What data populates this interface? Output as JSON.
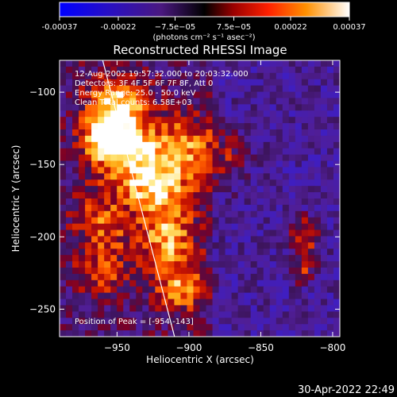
{
  "chart_data": {
    "type": "heatmap",
    "title": "Reconstructed RHESSI Image",
    "xlabel": "Heliocentric X (arcsec)",
    "ylabel": "Heliocentric Y (arcsec)",
    "xlim": [
      -990,
      -795
    ],
    "ylim": [
      -269,
      -78
    ],
    "x_ticks": [
      -950,
      -900,
      -850,
      -800
    ],
    "y_ticks": [
      -100,
      -150,
      -200,
      -250
    ],
    "x_tick_labels": [
      "−950",
      "−900",
      "−850",
      "−800"
    ],
    "y_tick_labels": [
      "−100",
      "−150",
      "−200",
      "−250"
    ],
    "colorbar": {
      "min": -0.00037,
      "max": 0.00037,
      "ticks": [
        -0.00037,
        -0.00022,
        -7.5e-05,
        7.5e-05,
        0.00022,
        0.00037
      ],
      "tick_labels": [
        "-0.00037",
        "-0.00022",
        "−7.5e−05",
        "7.5e−05",
        "0.00022",
        "0.00037"
      ],
      "unit_label": "(photons cm⁻² s⁻¹ asec⁻²)"
    },
    "annotations": [
      "12-Aug-2002 19:57:32.000 to 20:03:32.000",
      "Detectors: 3F 4F 5F 6F 7F 8F, Att 0",
      "Energy Range: 25.0 - 50.0 keV",
      "Clean   Total counts: 6.58E+03"
    ],
    "peak_label": "Position of Peak = [-954,-143]",
    "peak": [
      -954,
      -143
    ],
    "limb_line": [
      [
        -960,
        -78
      ],
      [
        -910,
        -269
      ]
    ],
    "sources": [
      {
        "x": -950,
        "y": -110,
        "sx": 14,
        "sy": 14,
        "amp": 1.0
      },
      {
        "x": -943,
        "y": -140,
        "sx": 16,
        "sy": 14,
        "amp": 1.05
      },
      {
        "x": -960,
        "y": -130,
        "sx": 10,
        "sy": 10,
        "amp": 0.8
      },
      {
        "x": -925,
        "y": -165,
        "sx": 14,
        "sy": 12,
        "amp": 0.85
      },
      {
        "x": -905,
        "y": -140,
        "sx": 14,
        "sy": 18,
        "amp": 0.7
      },
      {
        "x": -915,
        "y": -200,
        "sx": 14,
        "sy": 16,
        "amp": 0.85
      },
      {
        "x": -905,
        "y": -235,
        "sx": 12,
        "sy": 12,
        "amp": 0.75
      },
      {
        "x": -960,
        "y": -190,
        "sx": 14,
        "sy": 18,
        "amp": 0.6
      },
      {
        "x": -960,
        "y": -225,
        "sx": 12,
        "sy": 12,
        "amp": 0.45
      },
      {
        "x": -875,
        "y": -145,
        "sx": 12,
        "sy": 14,
        "amp": 0.45
      },
      {
        "x": -820,
        "y": -200,
        "sx": 7,
        "sy": 10,
        "amp": 0.75
      },
      {
        "x": -820,
        "y": -225,
        "sx": 6,
        "sy": 6,
        "amp": 0.5
      }
    ],
    "timestamp": "30-Apr-2022 22:49"
  }
}
